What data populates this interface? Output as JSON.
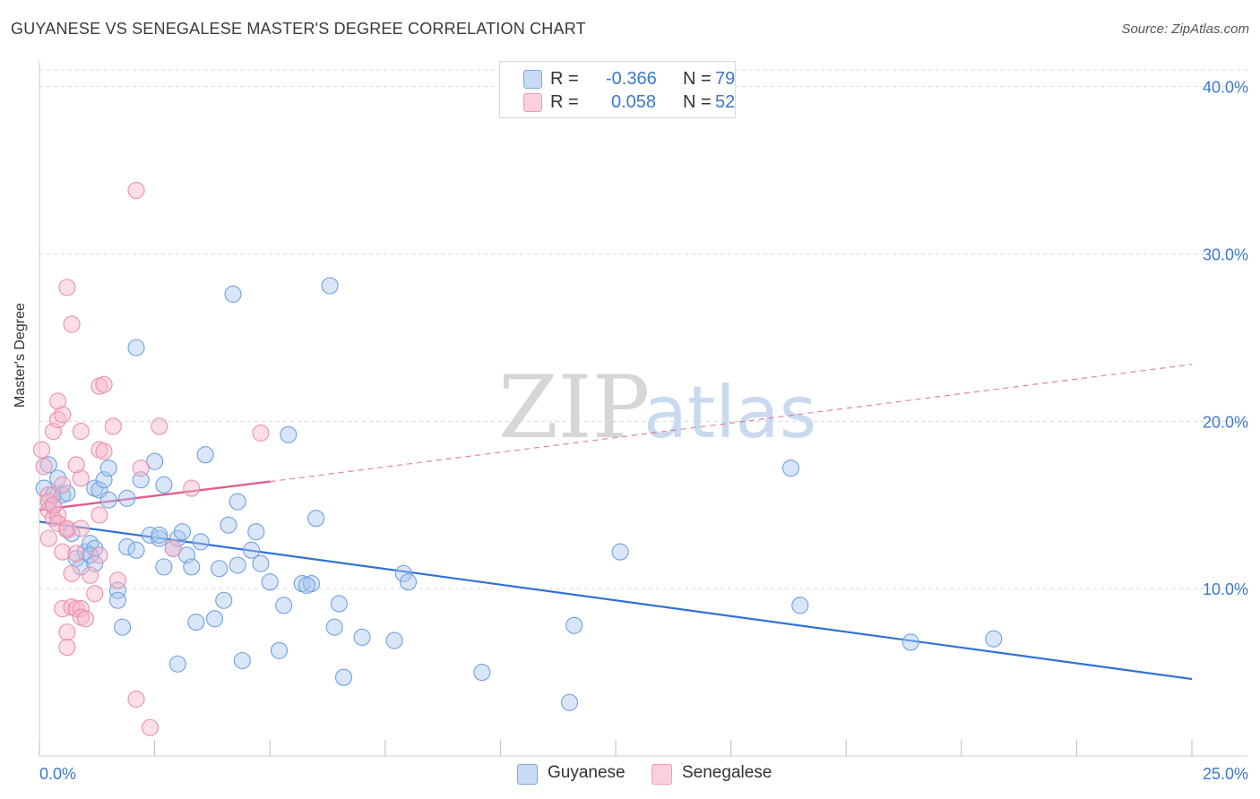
{
  "title": "GUYANESE VS SENEGALESE MASTER'S DEGREE CORRELATION CHART",
  "source": "Source: ZipAtlas.com",
  "watermark": {
    "zip": "ZIP",
    "atlas": "atlas"
  },
  "legend_top": {
    "rows": [
      {
        "r_label": "R =",
        "r_value": "-0.366",
        "n_label": "N =",
        "n_value": "79",
        "color": "#a9c8f0"
      },
      {
        "r_label": "R =",
        "r_value": "0.058",
        "n_label": "N =",
        "n_value": "52",
        "color": "#f6b6c9"
      }
    ]
  },
  "legend_bottom": [
    {
      "label": "Guyanese",
      "color": "#a9c8f0"
    },
    {
      "label": "Senegalese",
      "color": "#f6b6c9"
    }
  ],
  "colors": {
    "blue_fill": "#a9c8f0",
    "blue_stroke": "#6fa0e0",
    "blue_line": "#2f72d4",
    "pink_fill": "#f6b6c9",
    "pink_stroke": "#ea8fae",
    "pink_line": "#e0608f",
    "tick_text": "#3b78d0",
    "grid": "#d8d8d8"
  },
  "chart_data": {
    "type": "scatter",
    "title": "GUYANESE VS SENEGALESE MASTER'S DEGREE CORRELATION CHART",
    "xlabel": "",
    "ylabel": "Master's Degree",
    "xlim": [
      0,
      25
    ],
    "ylim": [
      0,
      41
    ],
    "x_tick_labels": [
      "0.0%",
      "25.0%"
    ],
    "y_ticks": [
      10,
      20,
      30,
      40
    ],
    "y_tick_labels": [
      "10.0%",
      "20.0%",
      "30.0%",
      "40.0%"
    ],
    "series": [
      {
        "name": "Guyanese",
        "r": -0.366,
        "n": 79,
        "trend": {
          "x": [
            0,
            25
          ],
          "y": [
            14.0,
            4.6
          ],
          "style": "solid"
        },
        "points": [
          [
            0.1,
            16.0
          ],
          [
            0.2,
            17.4
          ],
          [
            0.3,
            15.6
          ],
          [
            0.4,
            16.6
          ],
          [
            0.5,
            15.6
          ],
          [
            0.6,
            15.7
          ],
          [
            0.2,
            15.2
          ],
          [
            0.3,
            14.9
          ],
          [
            0.7,
            13.3
          ],
          [
            0.8,
            11.8
          ],
          [
            0.9,
            11.3
          ],
          [
            1.0,
            12.2
          ],
          [
            1.1,
            12.7
          ],
          [
            1.2,
            12.4
          ],
          [
            1.1,
            12.0
          ],
          [
            1.2,
            16.0
          ],
          [
            1.3,
            15.9
          ],
          [
            1.4,
            16.5
          ],
          [
            1.5,
            17.2
          ],
          [
            1.5,
            15.3
          ],
          [
            1.7,
            9.9
          ],
          [
            1.7,
            9.3
          ],
          [
            1.8,
            7.7
          ],
          [
            1.9,
            12.5
          ],
          [
            1.9,
            15.4
          ],
          [
            2.1,
            12.3
          ],
          [
            2.1,
            24.4
          ],
          [
            2.2,
            16.5
          ],
          [
            2.4,
            13.2
          ],
          [
            2.5,
            17.6
          ],
          [
            2.6,
            13.0
          ],
          [
            2.6,
            13.2
          ],
          [
            2.7,
            16.2
          ],
          [
            2.7,
            11.3
          ],
          [
            2.9,
            12.4
          ],
          [
            3.0,
            5.5
          ],
          [
            3.0,
            13.0
          ],
          [
            3.1,
            13.4
          ],
          [
            3.2,
            12.0
          ],
          [
            3.3,
            11.3
          ],
          [
            3.4,
            8.0
          ],
          [
            3.5,
            12.8
          ],
          [
            3.6,
            18.0
          ],
          [
            3.8,
            8.2
          ],
          [
            3.9,
            11.2
          ],
          [
            4.0,
            9.3
          ],
          [
            4.1,
            13.8
          ],
          [
            4.2,
            27.6
          ],
          [
            4.3,
            11.4
          ],
          [
            4.3,
            15.2
          ],
          [
            4.4,
            5.7
          ],
          [
            4.6,
            12.3
          ],
          [
            4.7,
            13.4
          ],
          [
            4.8,
            11.5
          ],
          [
            5.0,
            10.4
          ],
          [
            5.2,
            6.3
          ],
          [
            5.3,
            9.0
          ],
          [
            5.4,
            19.2
          ],
          [
            5.7,
            10.3
          ],
          [
            5.9,
            10.3
          ],
          [
            5.8,
            10.2
          ],
          [
            6.0,
            14.2
          ],
          [
            6.3,
            28.1
          ],
          [
            6.4,
            7.7
          ],
          [
            6.5,
            9.1
          ],
          [
            6.6,
            4.7
          ],
          [
            7.0,
            7.1
          ],
          [
            7.7,
            6.9
          ],
          [
            7.9,
            10.9
          ],
          [
            8.0,
            10.4
          ],
          [
            9.6,
            5.0
          ],
          [
            11.5,
            3.2
          ],
          [
            11.6,
            7.8
          ],
          [
            12.6,
            12.2
          ],
          [
            16.3,
            17.2
          ],
          [
            16.5,
            9.0
          ],
          [
            18.9,
            6.8
          ],
          [
            20.7,
            7.0
          ],
          [
            1.2,
            11.5
          ]
        ]
      },
      {
        "name": "Senegalese",
        "r": 0.058,
        "n": 52,
        "trend_solid": {
          "x": [
            0,
            5.0
          ],
          "y": [
            14.7,
            16.4
          ]
        },
        "trend_dashed": {
          "x": [
            5.0,
            25
          ],
          "y": [
            16.4,
            23.4
          ]
        },
        "points": [
          [
            0.05,
            18.3
          ],
          [
            0.1,
            17.3
          ],
          [
            0.2,
            15.6
          ],
          [
            0.2,
            15.2
          ],
          [
            0.2,
            14.7
          ],
          [
            0.2,
            13.0
          ],
          [
            0.3,
            19.4
          ],
          [
            0.3,
            14.2
          ],
          [
            0.3,
            15.0
          ],
          [
            0.4,
            20.1
          ],
          [
            0.4,
            14.4
          ],
          [
            0.5,
            16.2
          ],
          [
            0.5,
            12.2
          ],
          [
            0.4,
            13.9
          ],
          [
            0.5,
            8.8
          ],
          [
            0.6,
            13.5
          ],
          [
            0.4,
            21.2
          ],
          [
            0.5,
            20.4
          ],
          [
            0.6,
            28.0
          ],
          [
            0.6,
            7.4
          ],
          [
            0.6,
            6.5
          ],
          [
            0.6,
            13.6
          ],
          [
            0.7,
            25.8
          ],
          [
            0.7,
            10.9
          ],
          [
            0.8,
            12.1
          ],
          [
            0.7,
            8.9
          ],
          [
            0.8,
            17.4
          ],
          [
            0.8,
            8.8
          ],
          [
            0.9,
            13.6
          ],
          [
            0.9,
            8.8
          ],
          [
            0.9,
            19.4
          ],
          [
            0.9,
            16.6
          ],
          [
            0.9,
            8.3
          ],
          [
            1.0,
            8.2
          ],
          [
            1.1,
            10.8
          ],
          [
            1.2,
            9.7
          ],
          [
            1.3,
            14.4
          ],
          [
            1.3,
            12.0
          ],
          [
            1.3,
            22.1
          ],
          [
            1.3,
            18.3
          ],
          [
            1.4,
            22.2
          ],
          [
            1.4,
            18.2
          ],
          [
            1.6,
            19.7
          ],
          [
            1.7,
            10.5
          ],
          [
            2.1,
            33.8
          ],
          [
            2.2,
            17.2
          ],
          [
            2.4,
            1.7
          ],
          [
            2.6,
            19.7
          ],
          [
            2.9,
            12.4
          ],
          [
            3.3,
            16.0
          ],
          [
            4.8,
            19.3
          ],
          [
            2.1,
            3.4
          ]
        ]
      }
    ]
  }
}
